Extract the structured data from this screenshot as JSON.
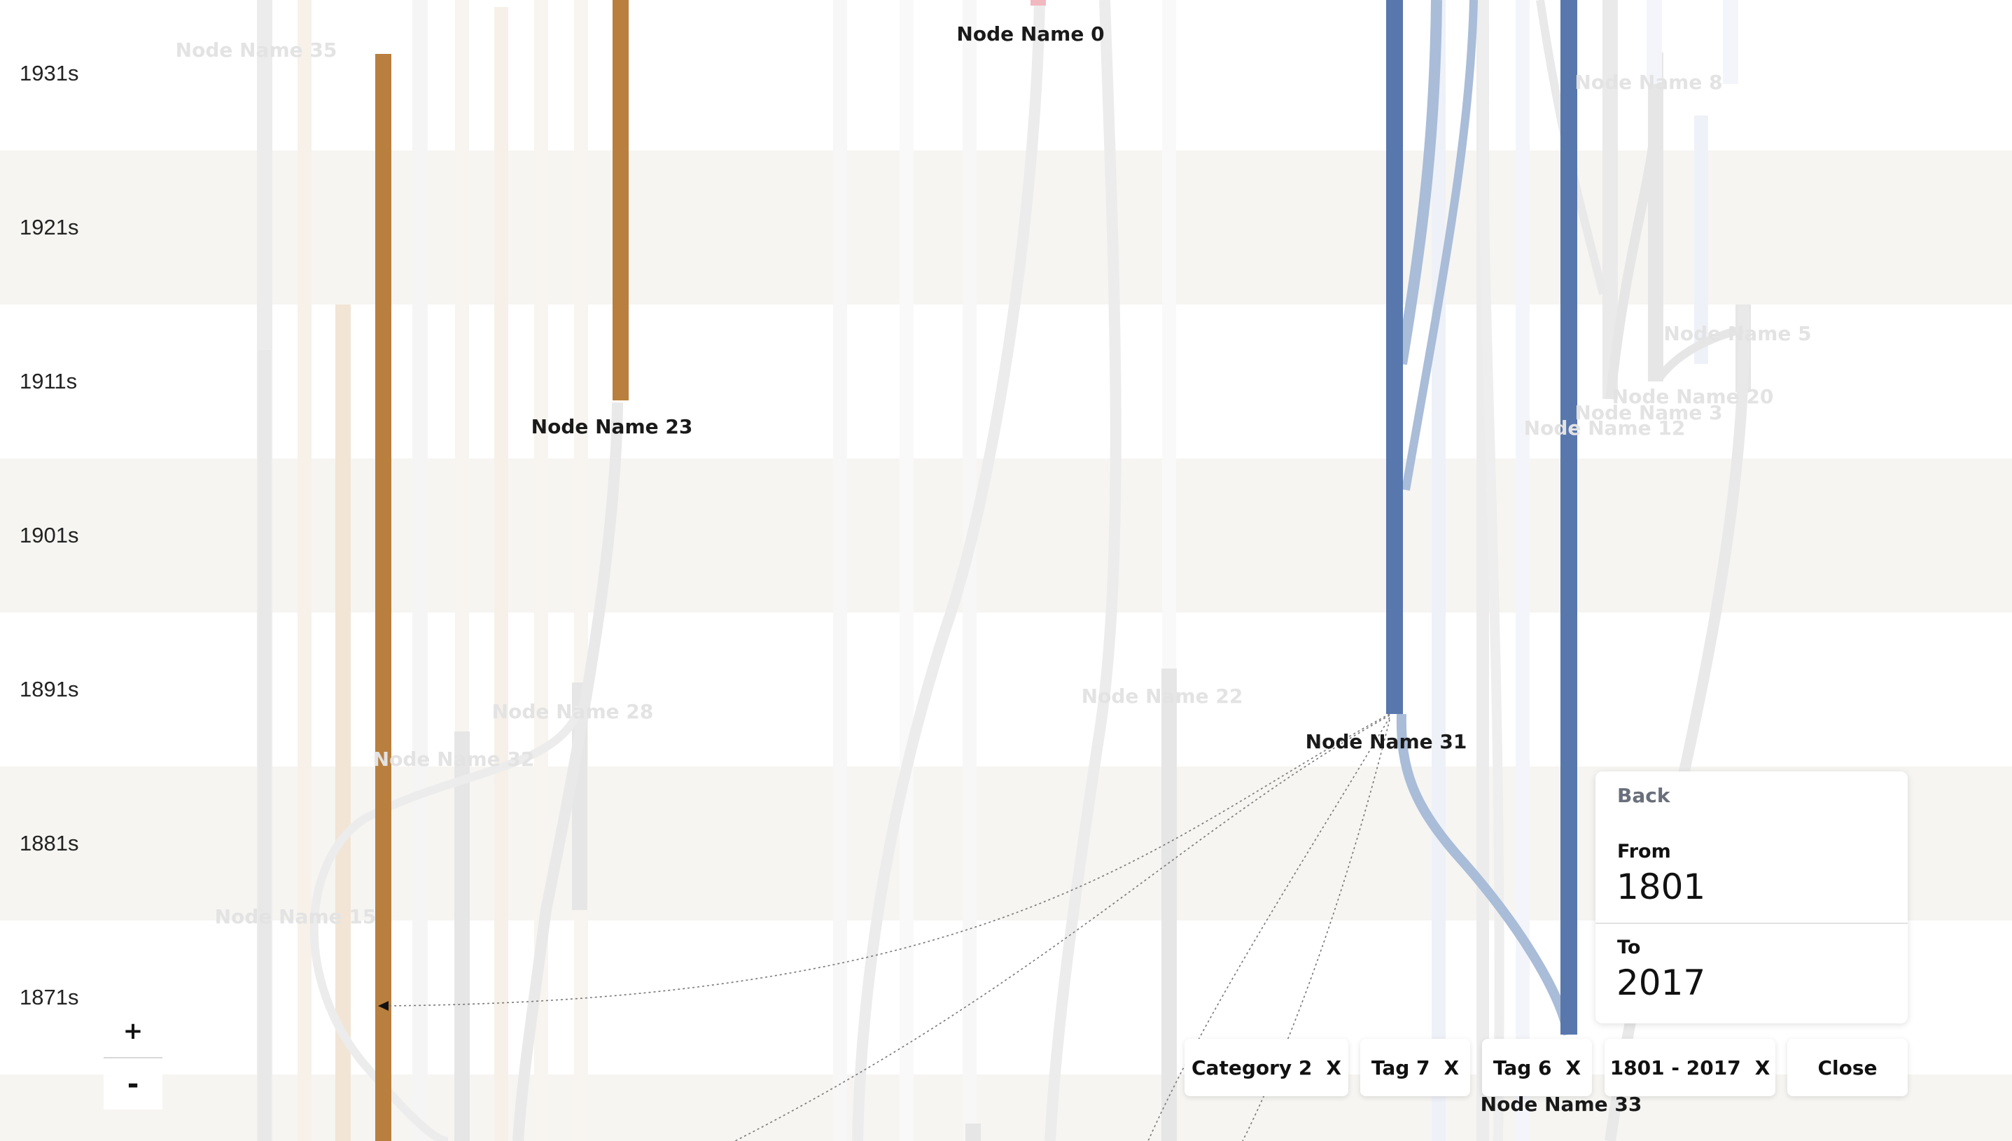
{
  "timeline": {
    "decades": [
      "1931s",
      "1921s",
      "1911s",
      "1901s",
      "1891s",
      "1881s",
      "1871s"
    ]
  },
  "nodes": [
    {
      "label": "Node Name 0",
      "highlighted": true
    },
    {
      "label": "Node Name 23",
      "highlighted": true
    },
    {
      "label": "Node Name 31",
      "highlighted": true
    },
    {
      "label": "Node Name 33",
      "highlighted": true
    },
    {
      "label": "Node Name 35",
      "highlighted": false
    },
    {
      "label": "Node Name 8",
      "highlighted": false
    },
    {
      "label": "Node Name 5",
      "highlighted": false
    },
    {
      "label": "Node Name 20",
      "highlighted": false
    },
    {
      "label": "Node Name 3",
      "highlighted": false
    },
    {
      "label": "Node Name 12",
      "highlighted": false
    },
    {
      "label": "Node Name 28",
      "highlighted": false
    },
    {
      "label": "Node Name 22",
      "highlighted": false
    },
    {
      "label": "Node Name 32",
      "highlighted": false
    },
    {
      "label": "Node Name 15",
      "highlighted": false
    }
  ],
  "zoom": {
    "in_label": "+",
    "out_label": "-"
  },
  "date_panel": {
    "back_label": "Back",
    "from_label": "From",
    "from_value": "1801",
    "to_label": "To",
    "to_value": "2017"
  },
  "filters": {
    "chips": [
      {
        "label": "Category 2",
        "remove": "X"
      },
      {
        "label": "Tag 7",
        "remove": "X"
      },
      {
        "label": "Tag 6",
        "remove": "X"
      },
      {
        "label": "1801 - 2017",
        "remove": "X"
      }
    ],
    "close_label": "Close"
  },
  "colors": {
    "band_shaded": "#f6f5f2",
    "orange_stream": "#b97f3e",
    "blue_stream": "#5877ad",
    "blue_light": "#a9bcd8",
    "faded_stream": "#e6e6e6",
    "pink_marker": "#f2b8c0"
  }
}
